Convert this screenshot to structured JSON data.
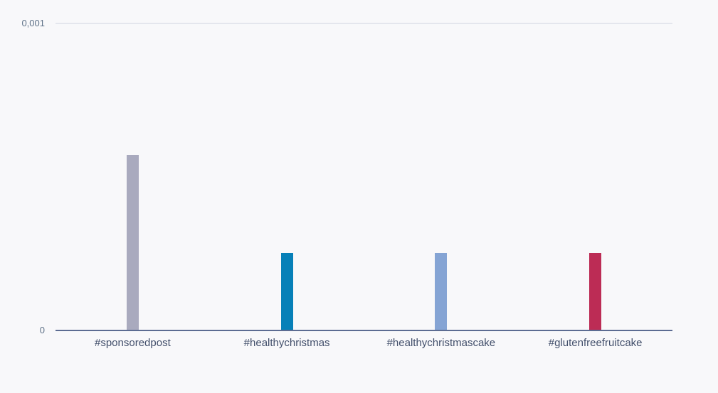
{
  "chart_data": {
    "type": "bar",
    "categories": [
      "#sponsoredpost",
      "#healthychristmas",
      "#healthychristmascake",
      "#glutenfreefruitcake"
    ],
    "values": [
      0.00057,
      0.00025,
      0.00025,
      0.00025
    ],
    "bar_colors": [
      "#A9AABE",
      "#0780B8",
      "#85A4D4",
      "#BC2C55"
    ],
    "title": "",
    "xlabel": "",
    "ylabel": "",
    "ylim": [
      0,
      0.001
    ],
    "yticks": [
      {
        "label": "0,001",
        "value": 0.001
      },
      {
        "label": "0",
        "value": 0
      }
    ],
    "grid": "top gridline only",
    "legend": "none",
    "decimal_separator": ","
  },
  "colors": {
    "background": "#F8F8FA",
    "gridline": "#E4E6ED",
    "axis_line": "#5C6C92",
    "ytick_text": "#5F7288",
    "xtick_text": "#424F6B"
  }
}
